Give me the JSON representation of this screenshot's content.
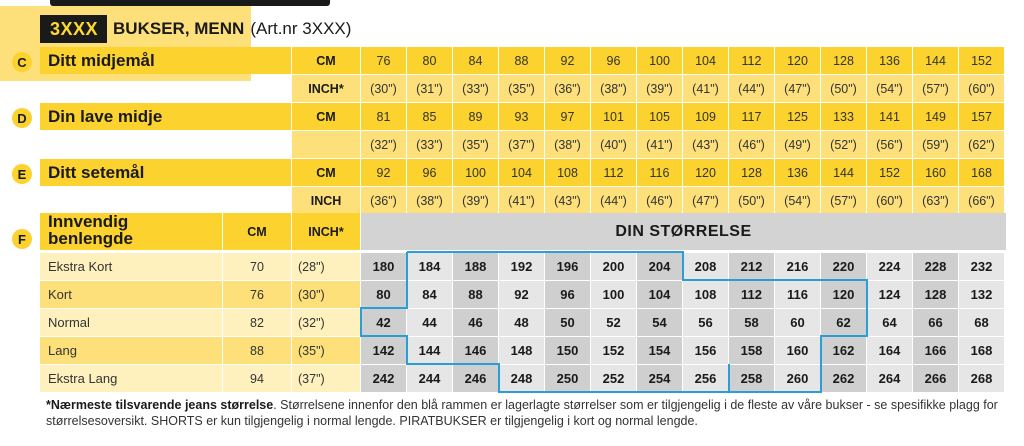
{
  "header": {
    "code": "3XXX",
    "title": "BUKSER, MENN",
    "artnr": "(Art.nr 3XXX)"
  },
  "sections": [
    {
      "letter": "C",
      "label": "Ditt midjemål",
      "rows": [
        {
          "unit": "CM",
          "values": [
            "76",
            "80",
            "84",
            "88",
            "92",
            "96",
            "100",
            "104",
            "112",
            "120",
            "128",
            "136",
            "144",
            "152"
          ]
        },
        {
          "unit": "INCH*",
          "values": [
            "(30\")",
            "(31\")",
            "(33\")",
            "(35\")",
            "(36\")",
            "(38\")",
            "(39\")",
            "(41\")",
            "(44\")",
            "(47\")",
            "(50\")",
            "(54\")",
            "(57\")",
            "(60\")"
          ]
        }
      ]
    },
    {
      "letter": "D",
      "label": "Din lave midje",
      "rows": [
        {
          "unit": "CM",
          "values": [
            "81",
            "85",
            "89",
            "93",
            "97",
            "101",
            "105",
            "109",
            "117",
            "125",
            "133",
            "141",
            "149",
            "157"
          ]
        },
        {
          "unit": "",
          "values": [
            "(32\")",
            "(33\")",
            "(35\")",
            "(37\")",
            "(38\")",
            "(40\")",
            "(41\")",
            "(43\")",
            "(46\")",
            "(49\")",
            "(52\")",
            "(56\")",
            "(59\")",
            "(62\")"
          ]
        }
      ]
    },
    {
      "letter": "E",
      "label": "Ditt setemål",
      "rows": [
        {
          "unit": "CM",
          "values": [
            "92",
            "96",
            "100",
            "104",
            "108",
            "112",
            "116",
            "120",
            "128",
            "136",
            "144",
            "152",
            "160",
            "168"
          ]
        },
        {
          "unit": "INCH",
          "values": [
            "(36\")",
            "(38\")",
            "(39\")",
            "(41\")",
            "(43\")",
            "(44\")",
            "(46\")",
            "(47\")",
            "(50\")",
            "(54\")",
            "(57\")",
            "(60\")",
            "(63\")",
            "(66\")"
          ]
        }
      ]
    }
  ],
  "inseam": {
    "letter": "F",
    "label_line1": "Innvendig",
    "label_line2": "benlengde",
    "cm_header": "CM",
    "inch_header": "INCH*",
    "size_header": "DIN STØRRELSE",
    "rows": [
      {
        "name": "Ekstra Kort",
        "cm": "70",
        "inch": "(28\")",
        "sizes": [
          "180",
          "184",
          "188",
          "192",
          "196",
          "200",
          "204",
          "208",
          "212",
          "216",
          "220",
          "224",
          "228",
          "232"
        ]
      },
      {
        "name": "Kort",
        "cm": "76",
        "inch": "(30\")",
        "sizes": [
          "80",
          "84",
          "88",
          "92",
          "96",
          "100",
          "104",
          "108",
          "112",
          "116",
          "120",
          "124",
          "128",
          "132"
        ]
      },
      {
        "name": "Normal",
        "cm": "82",
        "inch": "(32\")",
        "sizes": [
          "42",
          "44",
          "46",
          "48",
          "50",
          "52",
          "54",
          "56",
          "58",
          "60",
          "62",
          "64",
          "66",
          "68"
        ]
      },
      {
        "name": "Lang",
        "cm": "88",
        "inch": "(35\")",
        "sizes": [
          "142",
          "144",
          "146",
          "148",
          "150",
          "152",
          "154",
          "156",
          "158",
          "160",
          "162",
          "164",
          "166",
          "168"
        ]
      },
      {
        "name": "Ekstra Lang",
        "cm": "94",
        "inch": "(37\")",
        "sizes": [
          "242",
          "244",
          "246",
          "248",
          "250",
          "252",
          "254",
          "256",
          "258",
          "260",
          "262",
          "264",
          "266",
          "268"
        ]
      }
    ]
  },
  "footnote": {
    "bold": "*Nærmeste tilsvarende jeans størrelse",
    "text": ". Størrelsene innenfor den blå rammen er lagerlagte størrelser som er tilgjengelig i de fleste av våre bukser - se spesifikke plagg for størrelsesoversikt. SHORTS er kun tilgjengelig i normal lengde. PIRATBUKSER er tilgjengelig i kort og normal lengde."
  },
  "colors": {
    "yellow": "#fcd22e",
    "yellow_light": "#fde07a",
    "yellow_pale": "#fef1bd",
    "frame": "#2a9fd6",
    "gray_dark": "#cfcfcf",
    "gray_light": "#e6e6e6"
  }
}
